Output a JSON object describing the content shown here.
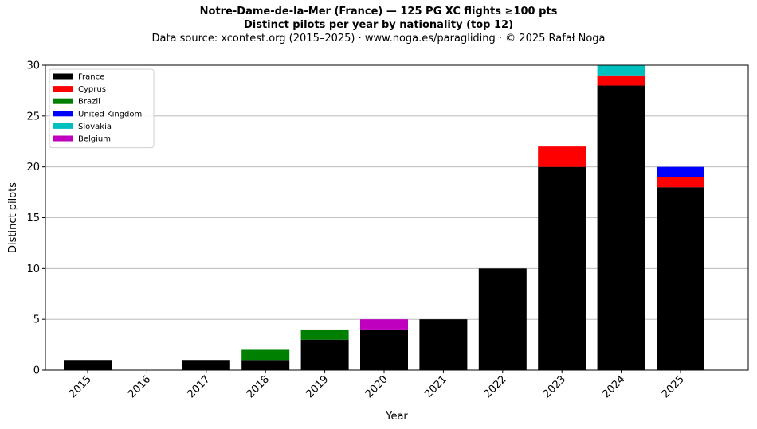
{
  "chart_data": {
    "type": "bar",
    "stacked": true,
    "title": "Notre-Dame-de-la-Mer (France)  —  125 PG XC flights ≥100 pts",
    "title2": "Distinct pilots per year by nationality (top 12)",
    "subtitle": "Data source: xcontest.org (2015–2025)  ·  www.noga.es/paragliding  ·  © 2025 Rafał Noga",
    "xlabel": "Year",
    "ylabel": "Distinct pilots",
    "ylim": [
      0,
      30
    ],
    "yticks": [
      0,
      5,
      10,
      15,
      20,
      25,
      30
    ],
    "grid": "horizontal",
    "legend_position": "top-left",
    "categories": [
      "2015",
      "2016",
      "2017",
      "2018",
      "2019",
      "2020",
      "2021",
      "2022",
      "2023",
      "2024",
      "2025"
    ],
    "series": [
      {
        "name": "France",
        "color": "#000000",
        "values": [
          1,
          0,
          1,
          1,
          3,
          4,
          5,
          10,
          20,
          28,
          18
        ]
      },
      {
        "name": "Cyprus",
        "color": "#ff0000",
        "values": [
          0,
          0,
          0,
          0,
          0,
          0,
          0,
          0,
          2,
          1,
          1
        ]
      },
      {
        "name": "Brazil",
        "color": "#008000",
        "values": [
          0,
          0,
          0,
          1,
          1,
          0,
          0,
          0,
          0,
          0,
          0
        ]
      },
      {
        "name": "United Kingdom",
        "color": "#0000ff",
        "values": [
          0,
          0,
          0,
          0,
          0,
          0,
          0,
          0,
          0,
          0,
          1
        ]
      },
      {
        "name": "Slovakia",
        "color": "#00bfbf",
        "values": [
          0,
          0,
          0,
          0,
          0,
          0,
          0,
          0,
          0,
          1,
          0
        ]
      },
      {
        "name": "Belgium",
        "color": "#bf00bf",
        "values": [
          0,
          0,
          0,
          0,
          0,
          1,
          0,
          0,
          0,
          0,
          0
        ]
      }
    ]
  }
}
